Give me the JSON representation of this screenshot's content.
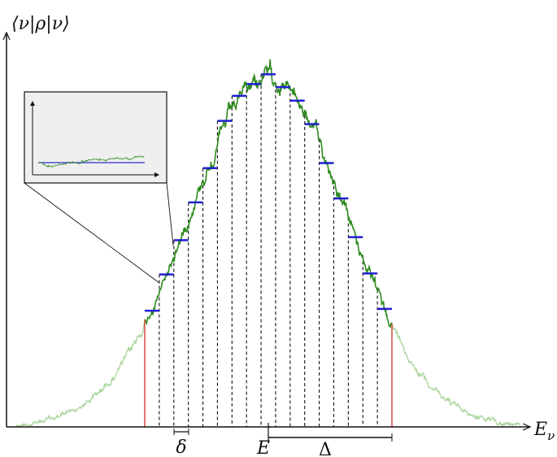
{
  "axes": {
    "y_label": "⟨ν|ρ|ν⟩",
    "x_label": "E",
    "x_subscript": "ν"
  },
  "annotations": {
    "bin_width": "δ",
    "center_energy": "E",
    "window_width": "Δ"
  }
}
